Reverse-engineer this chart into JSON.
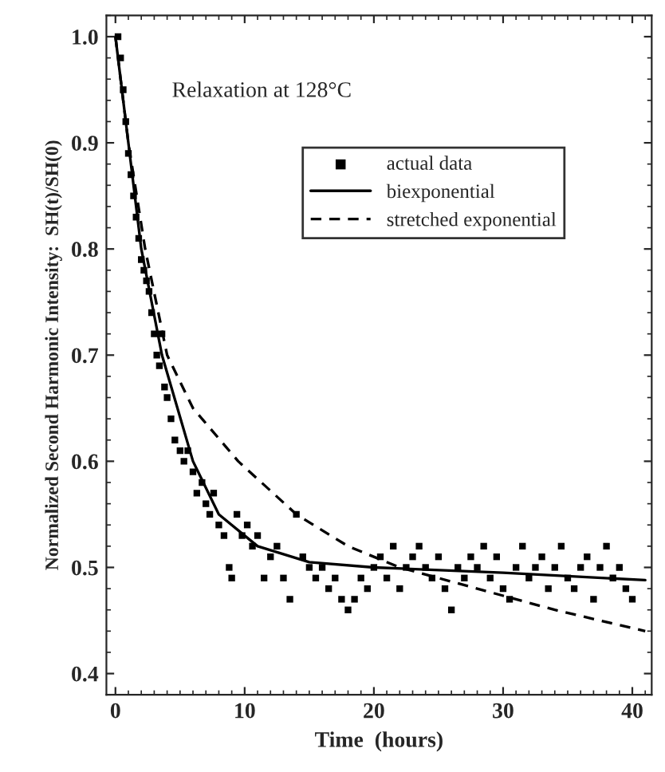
{
  "chart_data": {
    "type": "scatter",
    "xlabel": "Time  (hours)",
    "ylabel": "Normalized Second Harmonic Intensity:  SH(t)/SH(0)",
    "annotations": [
      "Relaxation at 128°C"
    ],
    "xlim": [
      -0.7,
      41.5
    ],
    "xticks": [
      0,
      10,
      20,
      30,
      40
    ],
    "ylim": [
      0.38,
      1.02
    ],
    "yticks": [
      {
        "value": 0.4,
        "label": "0.4"
      },
      {
        "value": 0.5,
        "label": "0.5"
      },
      {
        "value": 0.6,
        "label": "0.6"
      },
      {
        "value": 0.7,
        "label": "0.7"
      },
      {
        "value": 0.8,
        "label": "0.8"
      },
      {
        "value": 0.9,
        "label": "0.9"
      },
      {
        "value": 1.0,
        "label": "1.0"
      }
    ],
    "legend": "top",
    "grid": false,
    "series": [
      {
        "name": "actual data",
        "marker": "square",
        "color": "#000000",
        "x": [
          0.2,
          0.4,
          0.6,
          0.8,
          1.0,
          1.2,
          1.4,
          1.6,
          1.8,
          2.0,
          2.2,
          2.4,
          2.6,
          2.8,
          3.0,
          3.2,
          3.4,
          3.6,
          3.8,
          4.0,
          4.3,
          4.6,
          5.0,
          5.3,
          5.6,
          6.0,
          6.3,
          6.7,
          7.0,
          7.3,
          7.6,
          8.0,
          8.4,
          8.8,
          9.0,
          9.4,
          9.8,
          10.2,
          10.6,
          11.0,
          11.5,
          12.0,
          12.5,
          13.0,
          13.5,
          14.0,
          14.5,
          15.0,
          15.5,
          16.0,
          16.5,
          17.0,
          17.5,
          18.0,
          18.5,
          19.0,
          19.5,
          20.0,
          20.5,
          21.0,
          21.5,
          22.0,
          22.5,
          23.0,
          23.5,
          24.0,
          24.5,
          25.0,
          25.5,
          26.0,
          26.5,
          27.0,
          27.5,
          28.0,
          28.5,
          29.0,
          29.5,
          30.0,
          30.5,
          31.0,
          31.5,
          32.0,
          32.5,
          33.0,
          33.5,
          34.0,
          34.5,
          35.0,
          35.5,
          36.0,
          36.5,
          37.0,
          37.5,
          38.0,
          38.5,
          39.0,
          39.5,
          40.0
        ],
        "values": [
          1.0,
          0.98,
          0.95,
          0.92,
          0.89,
          0.87,
          0.85,
          0.83,
          0.81,
          0.79,
          0.78,
          0.77,
          0.76,
          0.74,
          0.72,
          0.7,
          0.69,
          0.72,
          0.67,
          0.66,
          0.64,
          0.62,
          0.61,
          0.6,
          0.61,
          0.59,
          0.57,
          0.58,
          0.56,
          0.55,
          0.57,
          0.54,
          0.53,
          0.5,
          0.49,
          0.55,
          0.53,
          0.54,
          0.52,
          0.53,
          0.49,
          0.51,
          0.52,
          0.49,
          0.47,
          0.55,
          0.51,
          0.5,
          0.49,
          0.5,
          0.48,
          0.49,
          0.47,
          0.46,
          0.47,
          0.49,
          0.48,
          0.5,
          0.51,
          0.49,
          0.52,
          0.48,
          0.5,
          0.51,
          0.52,
          0.5,
          0.49,
          0.51,
          0.48,
          0.46,
          0.5,
          0.49,
          0.51,
          0.5,
          0.52,
          0.49,
          0.51,
          0.48,
          0.47,
          0.5,
          0.52,
          0.49,
          0.5,
          0.51,
          0.48,
          0.5,
          0.52,
          0.49,
          0.48,
          0.5,
          0.51,
          0.47,
          0.5,
          0.52,
          0.49,
          0.5,
          0.48,
          0.47
        ]
      },
      {
        "name": "biexponential",
        "type": "line",
        "line_style": "solid",
        "color": "#000000",
        "x": [
          0,
          1,
          2,
          3.6,
          6,
          8,
          11,
          15,
          20,
          30,
          41
        ],
        "values": [
          1.0,
          0.9,
          0.8,
          0.7,
          0.6,
          0.55,
          0.52,
          0.505,
          0.5,
          0.495,
          0.488
        ]
      },
      {
        "name": "stretched exponential",
        "type": "line",
        "line_style": "dashed",
        "color": "#000000",
        "x": [
          0,
          1,
          2.3,
          4,
          6,
          9.5,
          14,
          18,
          22,
          28,
          34,
          41
        ],
        "values": [
          1.0,
          0.9,
          0.8,
          0.7,
          0.65,
          0.6,
          0.55,
          0.52,
          0.5,
          0.48,
          0.46,
          0.44
        ]
      }
    ]
  }
}
